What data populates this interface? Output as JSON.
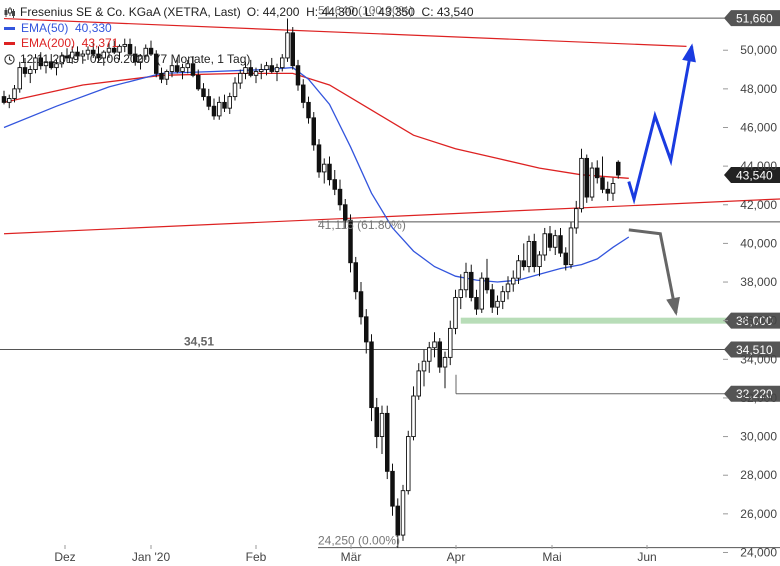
{
  "header": {
    "title": "Fresenius SE & Co. KGaA (XETRA, Last)",
    "ohlc": "O: 44,200  H: 44,300  L: 43,350  C: 43,540",
    "ema50_label": "EMA(50)  40,330",
    "ema200_label": "EMA(200)  43,371",
    "range_label": "12.11.2019 - 02.06.2020  (7 Monate, 1 Tag)"
  },
  "colors": {
    "ema50": "#3355dd",
    "ema200": "#dd2222",
    "up_arrow": "#1a3be0",
    "down_arrow": "#666666",
    "support_zone": "#b8ddb8",
    "price_tag": "#555555",
    "current_tag": "#222222"
  },
  "chart_data": {
    "type": "candlestick",
    "x_ticks": [
      "Dez",
      "Jan '20",
      "Feb",
      "Mär",
      "Apr",
      "Mai",
      "Jun"
    ],
    "y_ticks": [
      "24,000",
      "26,000",
      "28,000",
      "30,000",
      "32,000",
      "34,000",
      "36,000",
      "38,000",
      "40,000",
      "42,000",
      "44,000",
      "46,000",
      "48,000",
      "50,000"
    ],
    "ylim": [
      23.3,
      52.6
    ],
    "price_tags": [
      {
        "label": "51,660",
        "value": 51.66,
        "current": false
      },
      {
        "label": "43,540",
        "value": 43.54,
        "current": true
      },
      {
        "label": "36,000",
        "value": 36.0,
        "current": false
      },
      {
        "label": "34,510",
        "value": 34.51,
        "current": false
      },
      {
        "label": "32,220",
        "value": 32.22,
        "current": false
      }
    ],
    "fib_labels": [
      {
        "text": "51,640 (100.00%)",
        "value": 51.64
      },
      {
        "text": "41,115 (61.80%)",
        "value": 41.115
      },
      {
        "text": "24,250 (0.00%)",
        "value": 24.25
      }
    ],
    "level_label": {
      "text": "34,51",
      "value": 34.51
    },
    "candles": [
      [
        47.6,
        47.9,
        47.2,
        47.3
      ],
      [
        47.3,
        47.7,
        47.0,
        47.5
      ],
      [
        47.5,
        48.2,
        47.3,
        48.0
      ],
      [
        48.0,
        49.4,
        47.8,
        49.1
      ],
      [
        49.1,
        49.6,
        48.6,
        48.8
      ],
      [
        48.8,
        49.2,
        48.3,
        49.0
      ],
      [
        49.0,
        49.8,
        48.8,
        49.6
      ],
      [
        49.6,
        49.9,
        49.0,
        49.2
      ],
      [
        49.2,
        49.6,
        48.8,
        49.4
      ],
      [
        49.4,
        49.8,
        49.0,
        49.1
      ],
      [
        49.1,
        49.5,
        48.7,
        49.3
      ],
      [
        49.3,
        49.9,
        49.1,
        49.7
      ],
      [
        49.7,
        50.1,
        49.4,
        49.6
      ],
      [
        49.6,
        50.2,
        49.3,
        49.9
      ],
      [
        49.9,
        50.2,
        49.5,
        49.7
      ],
      [
        49.7,
        50.0,
        49.3,
        49.8
      ],
      [
        49.8,
        50.2,
        49.5,
        50.0
      ],
      [
        50.0,
        50.4,
        49.6,
        49.8
      ],
      [
        49.8,
        50.2,
        49.4,
        49.6
      ],
      [
        49.6,
        50.0,
        49.2,
        49.9
      ],
      [
        49.9,
        50.4,
        49.6,
        50.1
      ],
      [
        50.1,
        50.5,
        49.8,
        49.9
      ],
      [
        49.9,
        50.3,
        49.5,
        50.2
      ],
      [
        50.2,
        50.6,
        49.9,
        50.3
      ],
      [
        50.3,
        50.6,
        49.7,
        49.8
      ],
      [
        49.8,
        50.2,
        49.2,
        49.4
      ],
      [
        49.4,
        49.8,
        49.0,
        49.7
      ],
      [
        49.7,
        50.3,
        49.5,
        50.1
      ],
      [
        50.1,
        50.5,
        49.7,
        49.8
      ],
      [
        49.8,
        50.0,
        48.6,
        48.8
      ],
      [
        48.8,
        49.1,
        48.3,
        48.5
      ],
      [
        48.5,
        49.0,
        48.2,
        48.9
      ],
      [
        48.9,
        49.4,
        48.6,
        49.2
      ],
      [
        49.2,
        49.6,
        48.8,
        48.9
      ],
      [
        48.9,
        49.3,
        48.5,
        49.1
      ],
      [
        49.1,
        49.5,
        48.8,
        49.3
      ],
      [
        49.3,
        49.7,
        48.6,
        48.7
      ],
      [
        48.7,
        49.0,
        47.9,
        48.0
      ],
      [
        48.0,
        48.3,
        47.4,
        47.6
      ],
      [
        47.6,
        48.0,
        46.9,
        47.1
      ],
      [
        47.1,
        47.5,
        46.4,
        46.6
      ],
      [
        46.6,
        47.6,
        46.4,
        47.3
      ],
      [
        47.3,
        47.7,
        46.8,
        47.0
      ],
      [
        47.0,
        47.8,
        46.7,
        47.6
      ],
      [
        47.6,
        48.6,
        47.4,
        48.3
      ],
      [
        48.3,
        49.0,
        48.0,
        48.8
      ],
      [
        48.8,
        49.4,
        48.5,
        49.1
      ],
      [
        49.1,
        49.5,
        48.6,
        48.7
      ],
      [
        48.7,
        49.1,
        48.3,
        48.9
      ],
      [
        48.9,
        49.3,
        48.5,
        49.0
      ],
      [
        49.0,
        49.4,
        48.7,
        49.2
      ],
      [
        49.2,
        49.6,
        48.8,
        48.9
      ],
      [
        48.9,
        49.3,
        48.4,
        49.1
      ],
      [
        49.1,
        49.8,
        48.9,
        49.6
      ],
      [
        49.6,
        51.64,
        49.4,
        50.9
      ],
      [
        50.9,
        51.2,
        49.0,
        49.2
      ],
      [
        49.2,
        49.5,
        47.9,
        48.2
      ],
      [
        48.2,
        48.5,
        47.0,
        47.3
      ],
      [
        47.3,
        47.6,
        46.2,
        46.5
      ],
      [
        46.5,
        46.8,
        44.8,
        45.1
      ],
      [
        45.1,
        45.4,
        43.4,
        43.7
      ],
      [
        43.7,
        44.4,
        43.1,
        44.1
      ],
      [
        44.1,
        44.5,
        43.0,
        43.3
      ],
      [
        43.3,
        43.8,
        42.5,
        42.8
      ],
      [
        42.8,
        43.3,
        41.7,
        42.0
      ],
      [
        42.0,
        42.3,
        40.8,
        41.2
      ],
      [
        41.2,
        41.5,
        38.5,
        39.0
      ],
      [
        39.0,
        39.3,
        37.1,
        37.5
      ],
      [
        37.5,
        38.0,
        35.8,
        36.2
      ],
      [
        36.2,
        36.6,
        34.3,
        34.9
      ],
      [
        34.9,
        35.3,
        30.8,
        31.5
      ],
      [
        31.5,
        32.0,
        29.4,
        30.0
      ],
      [
        30.0,
        31.6,
        29.1,
        31.2
      ],
      [
        31.2,
        31.6,
        27.8,
        28.2
      ],
      [
        28.2,
        28.6,
        25.9,
        26.4
      ],
      [
        26.4,
        26.8,
        24.25,
        24.9
      ],
      [
        24.9,
        27.5,
        24.6,
        27.2
      ],
      [
        27.2,
        30.3,
        27.0,
        30.0
      ],
      [
        30.0,
        32.6,
        29.8,
        32.1
      ],
      [
        32.1,
        33.8,
        31.9,
        33.4
      ],
      [
        33.4,
        34.5,
        32.6,
        33.9
      ],
      [
        33.9,
        34.9,
        33.3,
        34.6
      ],
      [
        34.6,
        35.4,
        34.1,
        34.9
      ],
      [
        34.9,
        35.1,
        33.3,
        33.6
      ],
      [
        33.6,
        34.4,
        32.5,
        34.1
      ],
      [
        34.1,
        36.0,
        33.7,
        35.6
      ],
      [
        35.6,
        37.6,
        35.3,
        37.2
      ],
      [
        37.2,
        38.4,
        36.6,
        37.6
      ],
      [
        37.6,
        39.0,
        37.2,
        38.5
      ],
      [
        38.5,
        38.9,
        37.0,
        37.2
      ],
      [
        37.2,
        37.6,
        36.3,
        36.6
      ],
      [
        36.6,
        38.5,
        36.4,
        38.2
      ],
      [
        38.2,
        39.2,
        37.4,
        37.6
      ],
      [
        37.6,
        37.9,
        36.4,
        36.7
      ],
      [
        36.7,
        37.3,
        36.3,
        37.0
      ],
      [
        37.0,
        37.8,
        36.6,
        37.5
      ],
      [
        37.5,
        38.3,
        37.1,
        37.9
      ],
      [
        37.9,
        38.6,
        37.5,
        38.2
      ],
      [
        38.2,
        39.4,
        37.9,
        39.1
      ],
      [
        39.1,
        40.0,
        38.6,
        38.8
      ],
      [
        38.8,
        40.4,
        38.5,
        40.1
      ],
      [
        40.1,
        40.5,
        38.5,
        38.8
      ],
      [
        38.8,
        39.6,
        38.3,
        39.4
      ],
      [
        39.4,
        40.8,
        39.1,
        40.5
      ],
      [
        40.5,
        40.9,
        39.6,
        39.8
      ],
      [
        39.8,
        40.7,
        39.4,
        40.4
      ],
      [
        40.4,
        40.8,
        39.3,
        39.5
      ],
      [
        39.5,
        39.8,
        38.6,
        38.9
      ],
      [
        38.9,
        41.1,
        38.7,
        40.8
      ],
      [
        40.8,
        42.2,
        40.5,
        41.8
      ],
      [
        41.8,
        44.9,
        41.6,
        44.4
      ],
      [
        44.4,
        44.6,
        42.1,
        42.4
      ],
      [
        42.4,
        44.2,
        42.2,
        43.9
      ],
      [
        43.9,
        44.3,
        43.1,
        43.4
      ],
      [
        43.4,
        44.5,
        42.6,
        42.8
      ],
      [
        42.8,
        43.2,
        42.2,
        42.6
      ],
      [
        42.6,
        43.4,
        42.2,
        43.1
      ],
      [
        44.2,
        44.3,
        43.35,
        43.54
      ]
    ],
    "ema50": [
      [
        0,
        46.0
      ],
      [
        10,
        47.1
      ],
      [
        20,
        48.1
      ],
      [
        30,
        48.8
      ],
      [
        40,
        48.9
      ],
      [
        50,
        49.0
      ],
      [
        55,
        49.1
      ],
      [
        58,
        48.5
      ],
      [
        62,
        47.2
      ],
      [
        66,
        45.0
      ],
      [
        70,
        42.6
      ],
      [
        74,
        40.8
      ],
      [
        78,
        39.6
      ],
      [
        82,
        38.8
      ],
      [
        86,
        38.3
      ],
      [
        90,
        38.1
      ],
      [
        94,
        38.0
      ],
      [
        98,
        38.1
      ],
      [
        102,
        38.4
      ],
      [
        106,
        38.7
      ],
      [
        110,
        38.9
      ],
      [
        113,
        39.2
      ],
      [
        116,
        39.8
      ],
      [
        119,
        40.33
      ]
    ],
    "ema200": [
      [
        0,
        47.3
      ],
      [
        15,
        48.2
      ],
      [
        30,
        48.7
      ],
      [
        45,
        48.8
      ],
      [
        55,
        48.8
      ],
      [
        62,
        48.2
      ],
      [
        70,
        46.9
      ],
      [
        78,
        45.6
      ],
      [
        86,
        44.9
      ],
      [
        94,
        44.4
      ],
      [
        102,
        43.9
      ],
      [
        110,
        43.55
      ],
      [
        119,
        43.371
      ]
    ],
    "trendline_upper": {
      "x0": 0,
      "y0": 51.64,
      "x1": 130,
      "y1": 50.2
    },
    "trendline_lower": {
      "x0": 0,
      "y0": 40.5,
      "x1": 130,
      "y1": 42.3
    },
    "support_zone": {
      "x0": 87,
      "value": 36.0
    },
    "scenario_up": [
      [
        119,
        43.2
      ],
      [
        120,
        42.3
      ],
      [
        124,
        46.6
      ],
      [
        127,
        44.3
      ],
      [
        131,
        50.2
      ]
    ],
    "scenario_down": [
      [
        119,
        40.7
      ],
      [
        125,
        40.5
      ],
      [
        128,
        36.4
      ]
    ]
  }
}
